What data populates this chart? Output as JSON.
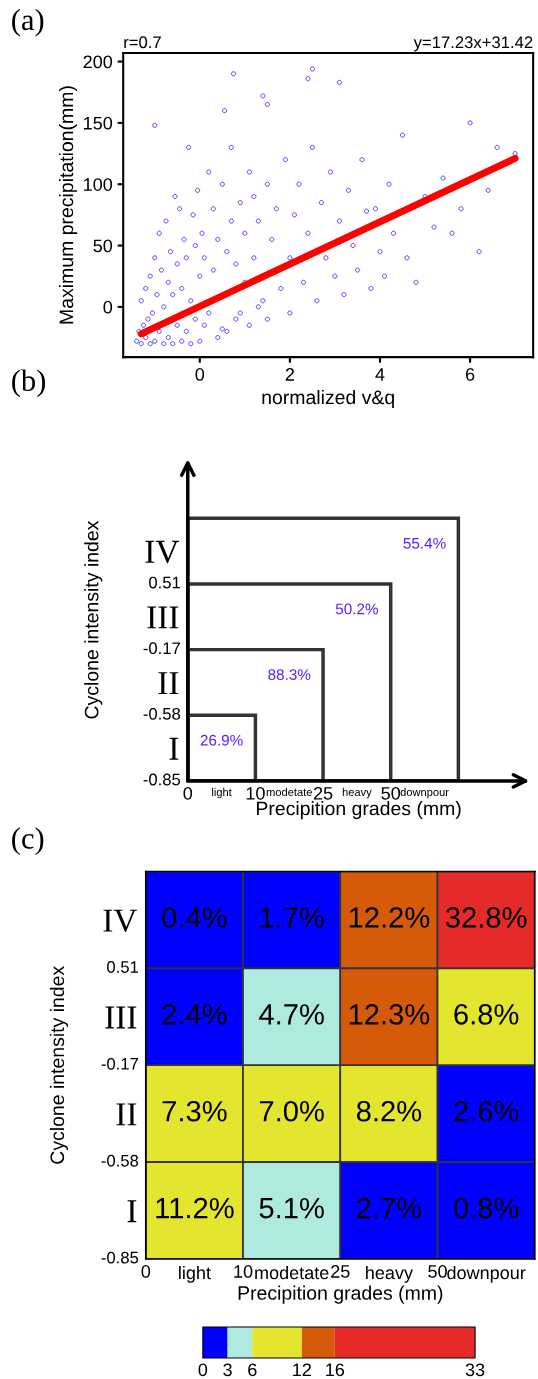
{
  "chart_data": [
    {
      "type": "scatter",
      "title": "(a)",
      "xlabel": "normalized v&q",
      "ylabel": "Maximum precipitation(mm)",
      "annotations": [
        "r=0.7",
        "y=17.23x+31.42"
      ],
      "xlim": [
        -1.7,
        7.4
      ],
      "ylim": [
        -41,
        207
      ],
      "xticks": [
        0,
        2,
        4,
        6
      ],
      "yticks": [
        0,
        50,
        100,
        150,
        200
      ],
      "series": [
        {
          "type": "scatter",
          "marker": "circle",
          "color": "#0000ff",
          "x": [
            -1.4,
            -1.35,
            -1.3,
            -1.3,
            -1.25,
            -1.2,
            -1.2,
            -1.15,
            -1.1,
            -1.1,
            -1.05,
            -1.0,
            -1.0,
            -0.95,
            -0.9,
            -0.9,
            -0.85,
            -0.8,
            -0.8,
            -0.75,
            -0.7,
            -0.7,
            -0.65,
            -0.6,
            -0.6,
            -0.55,
            -0.5,
            -0.5,
            -0.45,
            -0.4,
            -0.4,
            -0.35,
            -0.3,
            -0.3,
            -0.25,
            -0.2,
            -0.2,
            -0.15,
            -0.1,
            -0.1,
            -0.05,
            0.0,
            0.0,
            0.05,
            0.1,
            0.1,
            0.2,
            0.2,
            0.3,
            0.3,
            0.4,
            0.4,
            0.5,
            0.5,
            0.6,
            0.6,
            0.7,
            0.7,
            0.8,
            0.8,
            0.9,
            0.9,
            1.0,
            1.0,
            1.1,
            1.1,
            1.2,
            1.2,
            1.3,
            1.3,
            1.4,
            1.5,
            1.5,
            1.6,
            1.7,
            1.8,
            1.9,
            2.0,
            2.0,
            2.1,
            2.2,
            2.3,
            2.4,
            2.5,
            2.6,
            2.7,
            2.8,
            2.9,
            3.0,
            3.1,
            3.2,
            3.3,
            3.4,
            3.5,
            3.6,
            3.7,
            3.8,
            3.9,
            4.0,
            4.1,
            4.2,
            4.3,
            4.5,
            4.6,
            4.8,
            5.0,
            5.2,
            5.4,
            5.6,
            5.8,
            6.0,
            6.2,
            6.4,
            6.6,
            7.0,
            -1.0,
            0.75,
            2.5,
            2.4,
            3.1,
            1.4,
            0.55,
            1.5
          ],
          "values": [
            -28,
            -20,
            -30,
            5,
            -15,
            -25,
            15,
            -10,
            -30,
            25,
            -5,
            -28,
            40,
            10,
            -20,
            60,
            30,
            -30,
            0,
            70,
            -25,
            20,
            45,
            -30,
            10,
            90,
            -15,
            35,
            80,
            -28,
            15,
            55,
            -20,
            40,
            130,
            -30,
            5,
            75,
            -10,
            50,
            95,
            -28,
            25,
            60,
            -15,
            40,
            110,
            -5,
            30,
            80,
            -25,
            55,
            -18,
            100,
            -20,
            45,
            70,
            130,
            -10,
            35,
            85,
            -5,
            20,
            60,
            110,
            -15,
            40,
            90,
            0,
            70,
            5,
            100,
            -10,
            55,
            80,
            15,
            120,
            40,
            -5,
            75,
            100,
            20,
            60,
            130,
            5,
            85,
            40,
            110,
            25,
            70,
            10,
            95,
            50,
            30,
            120,
            78,
            15,
            80,
            45,
            25,
            100,
            60,
            140,
            40,
            20,
            90,
            65,
            105,
            60,
            80,
            150,
            45,
            95,
            130,
            125,
            148,
            190,
            194,
            186,
            183,
            172,
            160,
            165
          ]
        },
        {
          "type": "line",
          "color": "#ff0000",
          "x": [
            -1.3,
            7.0
          ],
          "values": [
            -22,
            121
          ]
        }
      ]
    },
    {
      "type": "other",
      "title": "(b)",
      "xlabel": "Precipition grades (mm)",
      "ylabel": "Cyclone intensity index",
      "categories": [
        "light",
        "modetate",
        "heavy",
        "downpour"
      ],
      "y_categories": [
        "IV",
        "III",
        "II",
        "I"
      ],
      "annotations": [
        "0",
        "10",
        "25",
        "50",
        "-0.85",
        "-0.58",
        "-0.17",
        "0.51"
      ],
      "value_labels": [
        "26.9%",
        "88.3%",
        "50.2%",
        "55.4%"
      ],
      "color": "#5a1eff"
    },
    {
      "type": "heatmap",
      "title": "(c)",
      "xlabel": "Precipition grades (mm)",
      "ylabel": "Cyclone intensity index",
      "categories": [
        "light",
        "modetate",
        "heavy",
        "downpour"
      ],
      "y_categories": [
        "IV",
        "III",
        "II",
        "I"
      ],
      "annotations": [
        "0",
        "10",
        "25",
        "50",
        "-0.85",
        "-0.58",
        "-0.17",
        "0.51"
      ],
      "cells": [
        [
          0.4,
          1.7,
          12.2,
          32.8
        ],
        [
          2.4,
          4.7,
          12.3,
          6.8
        ],
        [
          7.3,
          7.0,
          8.2,
          2.6
        ],
        [
          11.2,
          5.1,
          2.7,
          0.8
        ]
      ],
      "cell_labels": [
        [
          "0.4%",
          "1.7%",
          "12.2%",
          "32.8%"
        ],
        [
          "2.4%",
          "4.7%",
          "12.3%",
          "6.8%"
        ],
        [
          "7.3%",
          "7.0%",
          "8.2%",
          "2.6%"
        ],
        [
          "11.2%",
          "5.1%",
          "2.7%",
          "0.8%"
        ]
      ],
      "clim": [
        0,
        33
      ],
      "cticks": [
        0,
        3,
        6,
        12,
        16,
        33
      ],
      "colors": [
        "#0000ff",
        "#aeeae0",
        "#e3e52e",
        "#d55a0a",
        "#e52a2a"
      ]
    }
  ]
}
